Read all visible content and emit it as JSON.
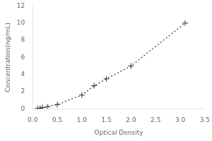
{
  "chart_data": {
    "type": "line",
    "xlabel": "Optical Density",
    "ylabel": "Concentration(ng/mL)",
    "x": [
      0.1,
      0.15,
      0.2,
      0.3,
      0.5,
      1.0,
      1.25,
      1.5,
      2.0,
      3.1
    ],
    "values": [
      0.05,
      0.08,
      0.15,
      0.25,
      0.5,
      1.6,
      2.7,
      3.5,
      5.0,
      10.0
    ],
    "color": "#333333",
    "marker": "+",
    "line_style": "dotted",
    "xlim": [
      0,
      3.5
    ],
    "ylim": [
      0,
      12
    ],
    "xticks": [
      {
        "value": 0,
        "label": "0.0"
      },
      0.5,
      {
        "value": 1.0,
        "label": "1.0"
      },
      1.5,
      {
        "value": 2.0,
        "label": "2.0"
      },
      2.5,
      {
        "value": 3.0,
        "label": "3.0"
      },
      3.5
    ],
    "yticks": [
      0,
      2,
      4,
      6,
      8,
      10,
      12
    ],
    "grid": false
  }
}
